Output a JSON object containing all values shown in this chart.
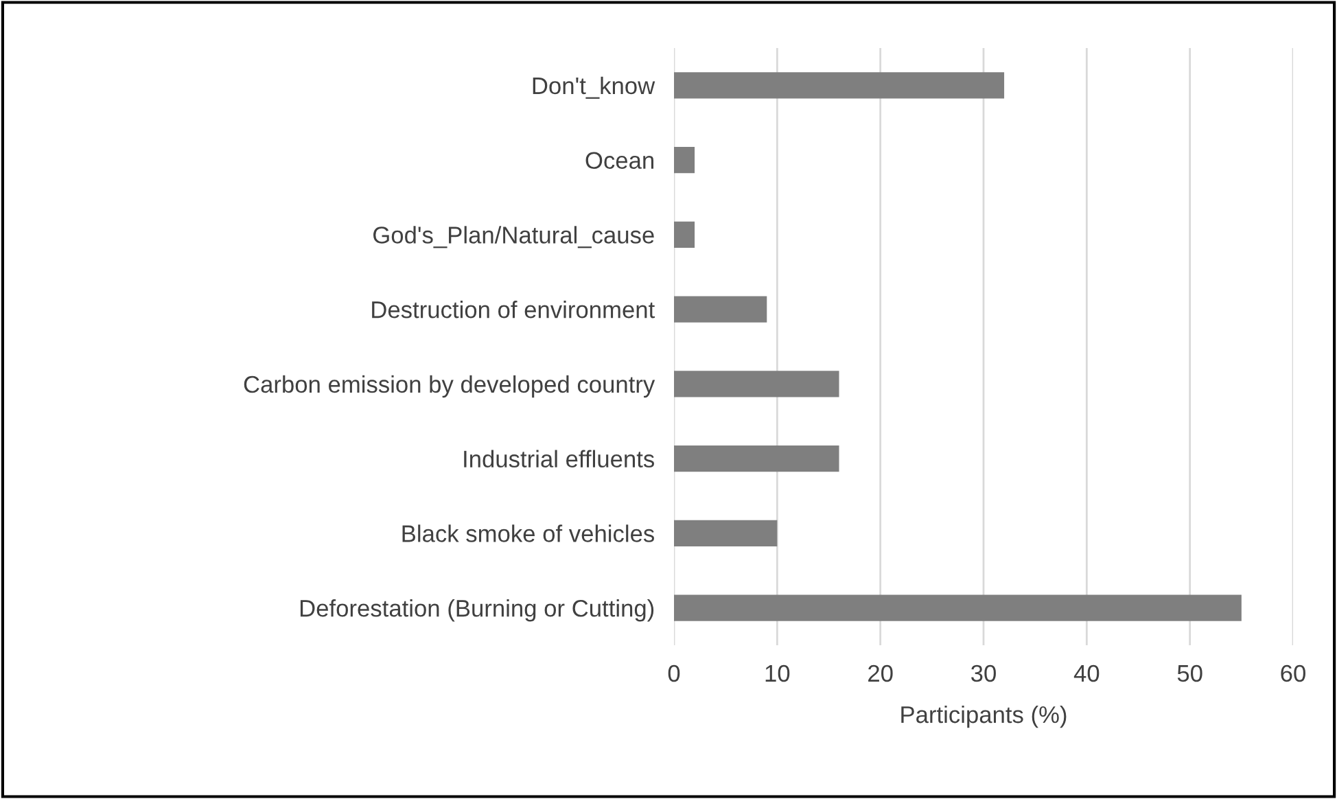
{
  "chart_data": {
    "type": "bar",
    "orientation": "horizontal",
    "xlabel": "Participants (%)",
    "categories": [
      "Don't_know",
      "Ocean",
      "God's_Plan/Natural_cause",
      "Destruction of environment",
      "Carbon emission by developed country",
      "Industrial effluents",
      "Black smoke of vehicles",
      "Deforestation (Burning or Cutting)"
    ],
    "values": [
      32,
      2,
      2,
      9,
      16,
      16,
      10,
      55
    ],
    "color": "#7f7f7f",
    "xlim": [
      0,
      60
    ],
    "xticks": [
      0,
      10,
      20,
      30,
      40,
      50,
      60
    ],
    "grid": "x",
    "legend": false
  }
}
